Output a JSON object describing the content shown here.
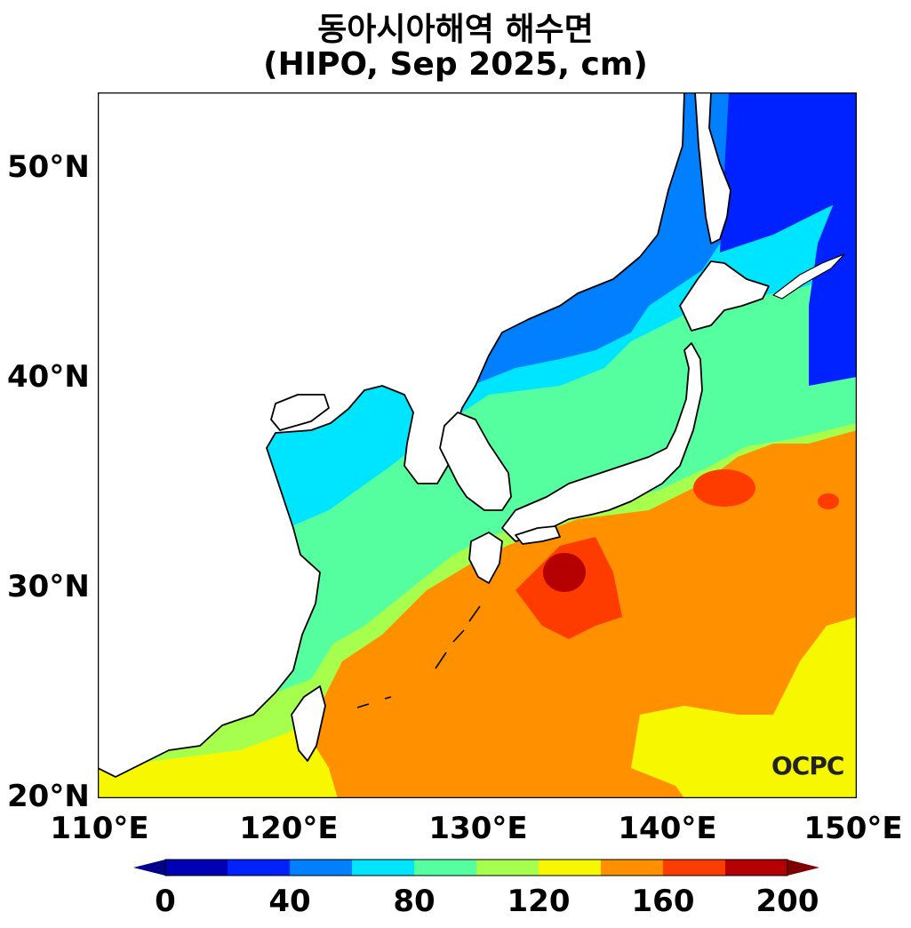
{
  "title": "동아시아해역 해수면",
  "subtitle": "(HIPO, Sep 2025, cm)",
  "credit": "OCPC",
  "axes": {
    "y_labels": [
      "50°N",
      "40°N",
      "30°N",
      "20°N"
    ],
    "x_labels": [
      "110°E",
      "120°E",
      "130°E",
      "140°E",
      "150°E"
    ]
  },
  "map_extent": {
    "lon": [
      110,
      150
    ],
    "lat": [
      20,
      53.5
    ]
  },
  "colorbar": {
    "labels": [
      "0",
      "40",
      "80",
      "120",
      "160",
      "200"
    ],
    "levels": [
      0,
      20,
      40,
      60,
      80,
      100,
      120,
      140,
      160,
      180,
      200
    ],
    "colors": [
      "#0000b4",
      "#0022ff",
      "#0080ff",
      "#00e5ff",
      "#55ffa0",
      "#a6ff4d",
      "#f7f700",
      "#ff9100",
      "#ff3c00",
      "#b40000"
    ],
    "under_color": "#00008a",
    "over_color": "#800000"
  }
}
